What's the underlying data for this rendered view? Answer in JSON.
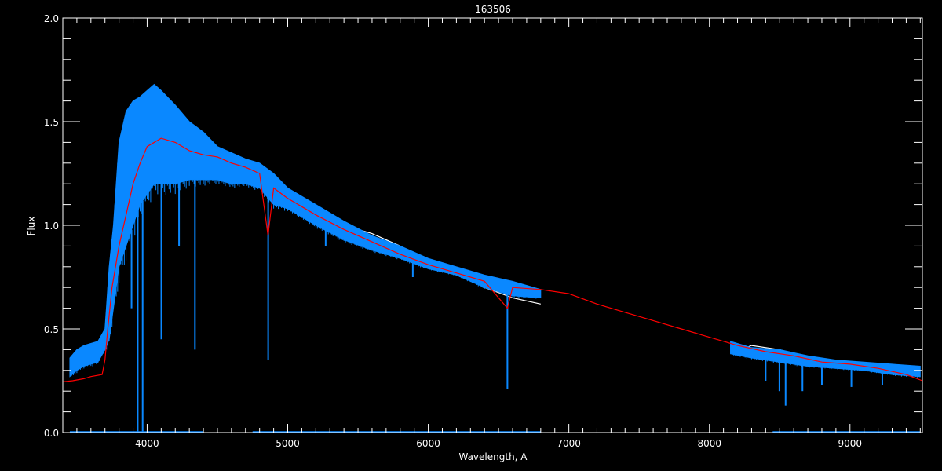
{
  "chart_data": {
    "type": "line",
    "title": "163506",
    "xlabel": "Wavelength, A",
    "ylabel": "Flux",
    "xlim": [
      3400,
      9515
    ],
    "ylim": [
      0.0,
      2.0
    ],
    "xticks": [
      4000,
      5000,
      6000,
      7000,
      8000,
      9000
    ],
    "xtick_labels": [
      "4000",
      "5000",
      "6000",
      "7000",
      "8000",
      "9000"
    ],
    "yticks": [
      0.0,
      0.5,
      1.0,
      1.5,
      2.0
    ],
    "ytick_labels": [
      "0.0",
      "0.5",
      "1.0",
      "1.5",
      "2.0"
    ],
    "grid": false,
    "colors": {
      "background": "#000000",
      "axes": "#ffffff",
      "observed_white": "#ffffff",
      "observed_blue": "#0a88ff",
      "model": "#ff0000"
    },
    "series": [
      {
        "id": "white",
        "color": "#ffffff",
        "segments": [
          [
            [
              3450,
              0.3
            ],
            [
              3550,
              0.36
            ],
            [
              3650,
              0.38
            ],
            [
              3700,
              0.45
            ],
            [
              3800,
              1.1
            ],
            [
              3900,
              1.3
            ],
            [
              4000,
              1.42
            ],
            [
              4200,
              1.4
            ],
            [
              4400,
              1.35
            ],
            [
              4600,
              1.3
            ],
            [
              4800,
              1.25
            ],
            [
              5000,
              1.14
            ],
            [
              5200,
              1.07
            ],
            [
              5400,
              1.0
            ],
            [
              5600,
              0.96
            ],
            [
              5800,
              0.9
            ],
            [
              6000,
              0.82
            ],
            [
              6200,
              0.77
            ],
            [
              6400,
              0.7
            ],
            [
              6600,
              0.65
            ],
            [
              6800,
              0.62
            ]
          ],
          [
            [
              8150,
              0.38
            ],
            [
              8300,
              0.42
            ],
            [
              8500,
              0.4
            ],
            [
              8700,
              0.36
            ],
            [
              9000,
              0.33
            ],
            [
              9250,
              0.3
            ],
            [
              9500,
              0.27
            ]
          ]
        ]
      },
      {
        "id": "blue",
        "color": "#0a88ff",
        "band_segments": [
          [
            [
              3450,
              0.27,
              0.36
            ],
            [
              3500,
              0.3,
              0.4
            ],
            [
              3550,
              0.32,
              0.42
            ],
            [
              3600,
              0.33,
              0.43
            ],
            [
              3650,
              0.34,
              0.44
            ],
            [
              3700,
              0.4,
              0.5
            ],
            [
              3730,
              0.45,
              0.8
            ],
            [
              3760,
              0.6,
              1.0
            ],
            [
              3800,
              0.8,
              1.4
            ],
            [
              3850,
              0.9,
              1.55
            ],
            [
              3900,
              1.0,
              1.6
            ],
            [
              3950,
              1.1,
              1.62
            ],
            [
              4000,
              1.15,
              1.65
            ],
            [
              4050,
              1.2,
              1.68
            ],
            [
              4100,
              1.2,
              1.65
            ],
            [
              4200,
              1.2,
              1.58
            ],
            [
              4300,
              1.22,
              1.5
            ],
            [
              4400,
              1.22,
              1.45
            ],
            [
              4500,
              1.22,
              1.38
            ],
            [
              4600,
              1.2,
              1.35
            ],
            [
              4700,
              1.2,
              1.32
            ],
            [
              4800,
              1.18,
              1.3
            ],
            [
              4900,
              1.1,
              1.25
            ],
            [
              5000,
              1.08,
              1.18
            ],
            [
              5200,
              1.0,
              1.1
            ],
            [
              5400,
              0.93,
              1.02
            ],
            [
              5600,
              0.88,
              0.95
            ],
            [
              5800,
              0.84,
              0.9
            ],
            [
              6000,
              0.79,
              0.84
            ],
            [
              6200,
              0.76,
              0.8
            ],
            [
              6400,
              0.7,
              0.76
            ],
            [
              6600,
              0.66,
              0.73
            ],
            [
              6800,
              0.65,
              0.69
            ]
          ],
          [
            [
              8150,
              0.38,
              0.44
            ],
            [
              8300,
              0.36,
              0.41
            ],
            [
              8500,
              0.34,
              0.4
            ],
            [
              8700,
              0.32,
              0.37
            ],
            [
              8900,
              0.31,
              0.35
            ],
            [
              9100,
              0.3,
              0.34
            ],
            [
              9300,
              0.28,
              0.33
            ],
            [
              9500,
              0.27,
              0.32
            ]
          ]
        ],
        "absorption_lines": [
          [
            3933,
            0.0
          ],
          [
            3968,
            0.0
          ],
          [
            3889,
            0.6
          ],
          [
            4101,
            0.45
          ],
          [
            4227,
            0.9
          ],
          [
            4340,
            0.4
          ],
          [
            4861,
            0.35
          ],
          [
            5270,
            0.9
          ],
          [
            5890,
            0.75
          ],
          [
            6563,
            0.21
          ],
          [
            8400,
            0.25
          ],
          [
            8498,
            0.2
          ],
          [
            8542,
            0.13
          ],
          [
            8662,
            0.2
          ],
          [
            8800,
            0.23
          ],
          [
            9010,
            0.22
          ],
          [
            9230,
            0.23
          ]
        ],
        "zero_segments": [
          [
            3450,
            4400
          ],
          [
            4750,
            6800
          ],
          [
            8450,
            9500
          ]
        ]
      },
      {
        "id": "model",
        "color": "#ff0000",
        "points": [
          [
            3400,
            0.245
          ],
          [
            3470,
            0.25
          ],
          [
            3550,
            0.26
          ],
          [
            3600,
            0.27
          ],
          [
            3680,
            0.28
          ],
          [
            3700,
            0.35
          ],
          [
            3720,
            0.5
          ],
          [
            3750,
            0.7
          ],
          [
            3800,
            0.9
          ],
          [
            3850,
            1.05
          ],
          [
            3900,
            1.2
          ],
          [
            3950,
            1.3
          ],
          [
            4000,
            1.38
          ],
          [
            4100,
            1.42
          ],
          [
            4200,
            1.4
          ],
          [
            4300,
            1.36
          ],
          [
            4400,
            1.34
          ],
          [
            4500,
            1.33
          ],
          [
            4600,
            1.3
          ],
          [
            4700,
            1.28
          ],
          [
            4800,
            1.25
          ],
          [
            4860,
            0.95
          ],
          [
            4900,
            1.18
          ],
          [
            5000,
            1.13
          ],
          [
            5200,
            1.05
          ],
          [
            5400,
            0.98
          ],
          [
            5600,
            0.92
          ],
          [
            5800,
            0.86
          ],
          [
            6000,
            0.81
          ],
          [
            6200,
            0.77
          ],
          [
            6400,
            0.73
          ],
          [
            6563,
            0.6
          ],
          [
            6600,
            0.7
          ],
          [
            6800,
            0.69
          ],
          [
            7000,
            0.67
          ],
          [
            7200,
            0.62
          ],
          [
            7400,
            0.58
          ],
          [
            7600,
            0.54
          ],
          [
            7800,
            0.5
          ],
          [
            8000,
            0.46
          ],
          [
            8200,
            0.42
          ],
          [
            8400,
            0.39
          ],
          [
            8600,
            0.37
          ],
          [
            8800,
            0.34
          ],
          [
            9000,
            0.33
          ],
          [
            9200,
            0.31
          ],
          [
            9400,
            0.28
          ],
          [
            9515,
            0.25
          ]
        ]
      }
    ]
  }
}
